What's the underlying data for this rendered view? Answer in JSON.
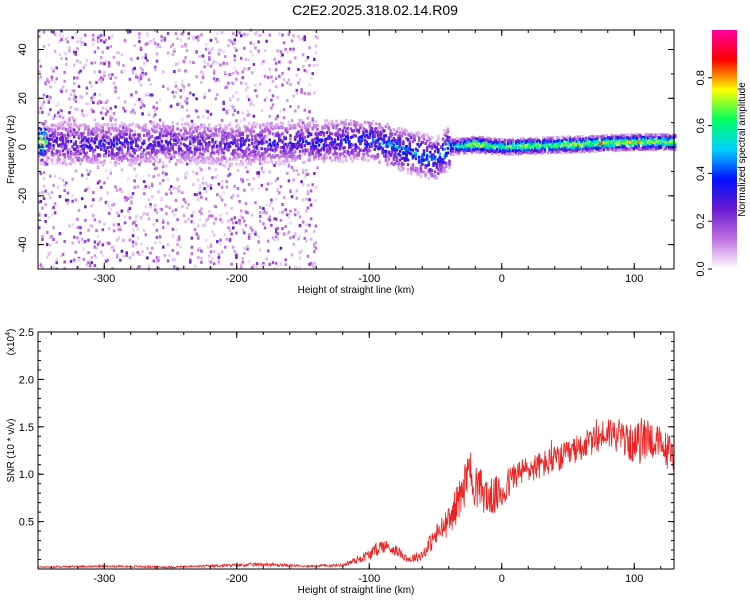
{
  "title": "C2E2.2025.318.02.14.R09",
  "chart_data": [
    {
      "type": "heatmap",
      "xlabel": "Height of straight line (km)",
      "ylabel": "Frequency (Hz)",
      "xlim": [
        -350,
        130
      ],
      "ylim": [
        -50,
        48
      ],
      "x_ticks": [
        "-300",
        "-200",
        "-100",
        "0",
        "100"
      ],
      "y_ticks": [
        "-40",
        "-20",
        "0",
        "20",
        "40"
      ],
      "colorbar": {
        "label": "Normalized spectral amplitude",
        "range": [
          0,
          1
        ],
        "ticks": [
          "0.0",
          "0.2",
          "0.4",
          "0.6",
          "0.8"
        ],
        "colors": [
          "#ffffff",
          "#c070e0",
          "#6a1bd0",
          "#0010ff",
          "#00d0ff",
          "#00ff60",
          "#ffff00",
          "#ff0000",
          "#ff00a0"
        ]
      },
      "ridge": {
        "description_values": [
          {
            "x": -345,
            "f": 2,
            "amp": 0.3
          },
          {
            "x": -300,
            "f": 1,
            "amp": 0.35
          },
          {
            "x": -250,
            "f": 2,
            "amp": 0.3
          },
          {
            "x": -200,
            "f": 1,
            "amp": 0.3
          },
          {
            "x": -150,
            "f": 2,
            "amp": 0.35
          },
          {
            "x": -100,
            "f": 3,
            "amp": 0.4
          },
          {
            "x": -70,
            "f": -2,
            "amp": 0.5
          },
          {
            "x": -50,
            "f": -5,
            "amp": 0.45
          },
          {
            "x": -40,
            "f": 0,
            "amp": 0.5
          },
          {
            "x": -20,
            "f": 1,
            "amp": 0.75
          },
          {
            "x": 0,
            "f": 0,
            "amp": 0.65
          },
          {
            "x": 50,
            "f": 1,
            "amp": 0.7
          },
          {
            "x": 100,
            "f": 2,
            "amp": 0.75
          },
          {
            "x": 130,
            "f": 2,
            "amp": 0.7
          }
        ],
        "scatter_extent_x": [
          -350,
          -140
        ]
      }
    },
    {
      "type": "line",
      "xlabel": "Height of straight line (km)",
      "ylabel": "SNR (10 * v/v)",
      "y_multiplier": "(x10",
      "y_multiplier_exp": "4",
      "y_multiplier_close": ")",
      "xlim": [
        -350,
        130
      ],
      "ylim": [
        0,
        2.5
      ],
      "x_ticks": [
        "-300",
        "-200",
        "-100",
        "0",
        "100"
      ],
      "y_ticks": [
        "0.5",
        "1.0",
        "1.5",
        "2.0",
        "2.5"
      ],
      "line_color": "#ee2222",
      "series": [
        {
          "x": [
            -350,
            -300,
            -250,
            -200,
            -180,
            -150,
            -120,
            -100,
            -90,
            -80,
            -70,
            -60,
            -50,
            -40,
            -30,
            -25,
            -20,
            -10,
            0,
            10,
            20,
            30,
            40,
            50,
            60,
            70,
            80,
            90,
            100,
            105,
            110,
            120,
            130
          ],
          "y": [
            0.02,
            0.03,
            0.02,
            0.04,
            0.05,
            0.03,
            0.04,
            0.15,
            0.25,
            0.2,
            0.1,
            0.15,
            0.35,
            0.5,
            0.8,
            1.0,
            0.9,
            0.75,
            0.8,
            1.0,
            1.05,
            1.1,
            1.15,
            1.2,
            1.3,
            1.35,
            1.45,
            1.4,
            1.3,
            1.35,
            1.4,
            1.3,
            1.2
          ],
          "noise": [
            0.01,
            0.01,
            0.01,
            0.015,
            0.02,
            0.01,
            0.015,
            0.06,
            0.08,
            0.06,
            0.04,
            0.06,
            0.12,
            0.15,
            0.25,
            0.3,
            0.25,
            0.2,
            0.2,
            0.15,
            0.15,
            0.15,
            0.15,
            0.15,
            0.15,
            0.15,
            0.18,
            0.18,
            0.2,
            0.25,
            0.22,
            0.2,
            0.2
          ]
        }
      ]
    }
  ]
}
